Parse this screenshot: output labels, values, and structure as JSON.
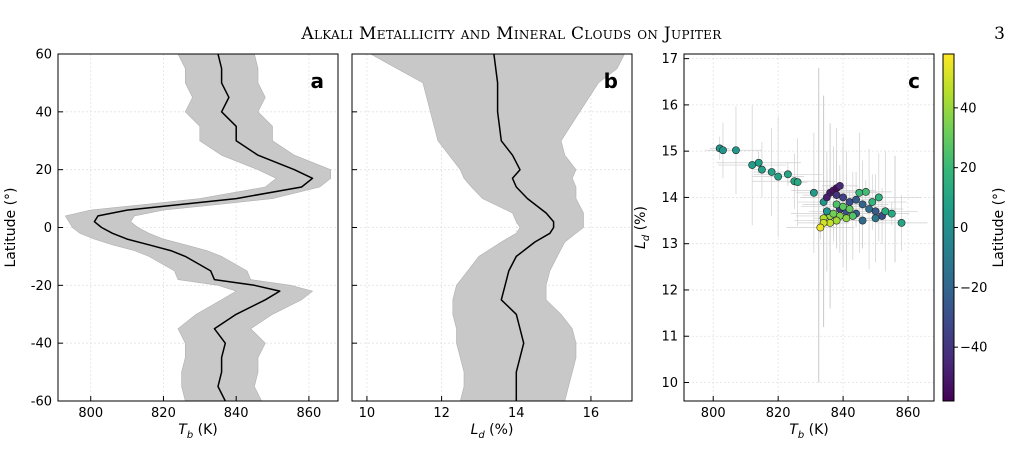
{
  "header": {
    "title": "Alkali Metallicity and Mineral Clouds on Jupiter",
    "page_number": "3"
  },
  "colors": {
    "band": "#c8c8c8",
    "line": "#000000",
    "viridis": [
      "#440154",
      "#482878",
      "#3e4989",
      "#31688e",
      "#26828e",
      "#1f9e89",
      "#35b779",
      "#6ece58",
      "#b5de2b",
      "#fde725"
    ]
  },
  "chart_data": [
    {
      "panel_label": "a",
      "type": "line",
      "xlabel": "T_b (K)",
      "ylabel": "Latitude (°)",
      "xlim": [
        791,
        868
      ],
      "ylim": [
        -60,
        60
      ],
      "xticks": [
        800,
        820,
        840,
        860
      ],
      "yticks": [
        -60,
        -40,
        -20,
        0,
        20,
        40,
        60
      ],
      "grid": true,
      "series": [
        {
          "kind": "line",
          "latitude": [
            60,
            55,
            50,
            45,
            40,
            35,
            30,
            25,
            20,
            17,
            14,
            10,
            8,
            6,
            4,
            2,
            0,
            -2,
            -4,
            -6,
            -8,
            -10,
            -15,
            -18,
            -20,
            -22,
            -25,
            -30,
            -35,
            -40,
            -45,
            -50,
            -55,
            -60
          ],
          "T_b": [
            835,
            836,
            836,
            838,
            836,
            840,
            840,
            846,
            856,
            861,
            858,
            840,
            825,
            810,
            802,
            801,
            803,
            806,
            810,
            816,
            822,
            826,
            833,
            834,
            845,
            852,
            848,
            840,
            834,
            837,
            836,
            836,
            835,
            837
          ]
        },
        {
          "kind": "band",
          "latitude": [
            60,
            55,
            50,
            45,
            40,
            35,
            30,
            25,
            20,
            17,
            14,
            10,
            8,
            6,
            4,
            2,
            0,
            -2,
            -4,
            -6,
            -8,
            -10,
            -15,
            -18,
            -20,
            -22,
            -25,
            -30,
            -35,
            -40,
            -45,
            -50,
            -55,
            -60
          ],
          "low": [
            824,
            826,
            826,
            828,
            826,
            830,
            830,
            836,
            846,
            851,
            848,
            830,
            815,
            800,
            793,
            794,
            795,
            797,
            801,
            806,
            812,
            816,
            823,
            824,
            835,
            840,
            836,
            829,
            824,
            826,
            826,
            825,
            825,
            826
          ],
          "high": [
            845,
            846,
            846,
            848,
            846,
            850,
            850,
            856,
            866,
            866,
            863,
            850,
            835,
            820,
            812,
            811,
            813,
            816,
            820,
            826,
            832,
            836,
            843,
            844,
            855,
            861,
            858,
            850,
            844,
            848,
            846,
            846,
            845,
            847
          ]
        }
      ]
    },
    {
      "panel_label": "b",
      "type": "line",
      "xlabel": "L_d (%)",
      "xlim": [
        9.6,
        17.1
      ],
      "ylim": [
        -60,
        60
      ],
      "xticks": [
        10,
        12,
        14,
        16
      ],
      "yticks": [
        -60,
        -40,
        -20,
        0,
        20,
        40,
        60
      ],
      "grid": true,
      "series": [
        {
          "kind": "line",
          "latitude": [
            60,
            50,
            40,
            30,
            25,
            20,
            17,
            14,
            10,
            5,
            2,
            0,
            -2,
            -5,
            -10,
            -15,
            -20,
            -25,
            -30,
            -35,
            -40,
            -45,
            -50,
            -55,
            -60
          ],
          "L_d": [
            13.4,
            13.5,
            13.5,
            13.6,
            13.9,
            14.1,
            13.9,
            14.0,
            14.3,
            14.8,
            15.0,
            15.0,
            14.9,
            14.5,
            14.0,
            13.8,
            13.7,
            13.6,
            14.0,
            14.1,
            14.2,
            14.1,
            14.0,
            14.0,
            14.0
          ]
        },
        {
          "kind": "band",
          "latitude": [
            60,
            55,
            50,
            40,
            30,
            25,
            20,
            17,
            14,
            10,
            5,
            2,
            0,
            -2,
            -5,
            -10,
            -15,
            -20,
            -25,
            -30,
            -35,
            -40,
            -45,
            -50,
            -55,
            -60
          ],
          "low": [
            10.1,
            10.8,
            11.5,
            11.7,
            11.9,
            12.2,
            12.5,
            12.6,
            12.8,
            13.1,
            13.9,
            14.0,
            14.1,
            14.0,
            13.6,
            13.0,
            12.7,
            12.4,
            12.3,
            12.3,
            12.4,
            12.4,
            12.5,
            12.6,
            12.6,
            12.5
          ],
          "high": [
            16.9,
            16.7,
            16.2,
            15.7,
            15.2,
            15.3,
            15.6,
            15.5,
            15.6,
            15.6,
            15.8,
            15.8,
            15.8,
            15.6,
            15.3,
            15.1,
            14.9,
            14.8,
            14.8,
            15.2,
            15.5,
            15.6,
            15.6,
            15.5,
            15.4,
            15.3
          ]
        }
      ]
    },
    {
      "panel_label": "c",
      "type": "scatter",
      "xlabel": "T_b (K)",
      "ylabel": "L_d (%)",
      "xlim": [
        791,
        868
      ],
      "ylim": [
        9.6,
        17.1
      ],
      "xticks": [
        800,
        820,
        840,
        860
      ],
      "yticks": [
        10,
        11,
        12,
        13,
        14,
        15,
        16,
        17
      ],
      "grid": true,
      "colorbar": {
        "label": "Latitude (°)",
        "range": [
          -58,
          58
        ],
        "ticks": [
          -40,
          -20,
          0,
          20,
          40
        ],
        "colormap": "viridis"
      },
      "points": [
        {
          "T_b": 802,
          "L_d": 15.06,
          "lat": 3
        },
        {
          "T_b": 803,
          "L_d": 15.02,
          "lat": 2
        },
        {
          "T_b": 807,
          "L_d": 15.02,
          "lat": 4
        },
        {
          "T_b": 812,
          "L_d": 14.7,
          "lat": 6
        },
        {
          "T_b": 814,
          "L_d": 14.75,
          "lat": 7
        },
        {
          "T_b": 815,
          "L_d": 14.6,
          "lat": 8
        },
        {
          "T_b": 818,
          "L_d": 14.55,
          "lat": 8
        },
        {
          "T_b": 820,
          "L_d": 14.45,
          "lat": 9
        },
        {
          "T_b": 823,
          "L_d": 14.5,
          "lat": 10
        },
        {
          "T_b": 825,
          "L_d": 14.35,
          "lat": 11
        },
        {
          "T_b": 826,
          "L_d": 14.33,
          "lat": 12
        },
        {
          "T_b": 831,
          "L_d": 14.1,
          "lat": 5
        },
        {
          "T_b": 834,
          "L_d": 13.9,
          "lat": 2
        },
        {
          "T_b": 836,
          "L_d": 14.1,
          "lat": -50
        },
        {
          "T_b": 837,
          "L_d": 14.15,
          "lat": -52
        },
        {
          "T_b": 838,
          "L_d": 14.2,
          "lat": -55
        },
        {
          "T_b": 839,
          "L_d": 14.25,
          "lat": -45
        },
        {
          "T_b": 835,
          "L_d": 14.0,
          "lat": -48
        },
        {
          "T_b": 838,
          "L_d": 14.05,
          "lat": -40
        },
        {
          "T_b": 840,
          "L_d": 14.0,
          "lat": -35
        },
        {
          "T_b": 842,
          "L_d": 13.9,
          "lat": -30
        },
        {
          "T_b": 844,
          "L_d": 13.95,
          "lat": -25
        },
        {
          "T_b": 846,
          "L_d": 13.85,
          "lat": -20
        },
        {
          "T_b": 848,
          "L_d": 13.75,
          "lat": -15
        },
        {
          "T_b": 850,
          "L_d": 13.7,
          "lat": -25
        },
        {
          "T_b": 852,
          "L_d": 13.6,
          "lat": -30
        },
        {
          "T_b": 839,
          "L_d": 13.75,
          "lat": -38
        },
        {
          "T_b": 841,
          "L_d": 13.7,
          "lat": -28
        },
        {
          "T_b": 844,
          "L_d": 13.65,
          "lat": -22
        },
        {
          "T_b": 846,
          "L_d": 13.5,
          "lat": -18
        },
        {
          "T_b": 850,
          "L_d": 13.55,
          "lat": -12
        },
        {
          "T_b": 845,
          "L_d": 14.1,
          "lat": 20
        },
        {
          "T_b": 847,
          "L_d": 14.12,
          "lat": 22
        },
        {
          "T_b": 849,
          "L_d": 13.9,
          "lat": 18
        },
        {
          "T_b": 851,
          "L_d": 14.0,
          "lat": 16
        },
        {
          "T_b": 853,
          "L_d": 13.7,
          "lat": 14
        },
        {
          "T_b": 855,
          "L_d": 13.65,
          "lat": 12
        },
        {
          "T_b": 858,
          "L_d": 13.45,
          "lat": 10
        },
        {
          "T_b": 838,
          "L_d": 13.85,
          "lat": 25
        },
        {
          "T_b": 840,
          "L_d": 13.8,
          "lat": 28
        },
        {
          "T_b": 842,
          "L_d": 13.75,
          "lat": 30
        },
        {
          "T_b": 839,
          "L_d": 13.6,
          "lat": 35
        },
        {
          "T_b": 841,
          "L_d": 13.55,
          "lat": 38
        },
        {
          "T_b": 836,
          "L_d": 13.6,
          "lat": 40
        },
        {
          "T_b": 838,
          "L_d": 13.5,
          "lat": 42
        },
        {
          "T_b": 834,
          "L_d": 13.55,
          "lat": 45
        },
        {
          "T_b": 836,
          "L_d": 13.45,
          "lat": 48
        },
        {
          "T_b": 834,
          "L_d": 13.45,
          "lat": 50
        },
        {
          "T_b": 833,
          "L_d": 13.35,
          "lat": 55
        },
        {
          "T_b": 837,
          "L_d": 13.65,
          "lat": 33
        },
        {
          "T_b": 843,
          "L_d": 13.6,
          "lat": 26
        },
        {
          "T_b": 835,
          "L_d": 13.7,
          "lat": 2
        }
      ]
    }
  ]
}
